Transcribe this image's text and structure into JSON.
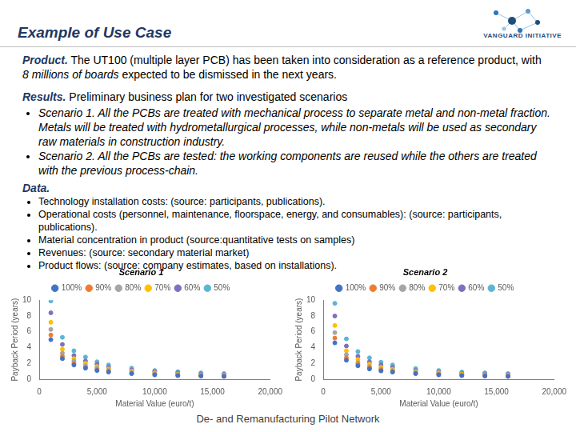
{
  "header": {
    "title": "Example of Use Case",
    "logo": "VANGUARD INITIATIVE"
  },
  "product": {
    "label": "Product.",
    "text_before": " The UT100 (multiple layer PCB) has been taken into consideration as a reference product, with ",
    "emphasis": "8 millions of boards",
    "text_after": " expected to be dismissed in the next years."
  },
  "results": {
    "label": "Results.",
    "text": " Preliminary business plan for two investigated scenarios",
    "items": [
      "Scenario 1. All the PCBs are treated with mechanical process to separate metal and non-metal fraction. Metals will be treated with hydrometallurgical processes, while non-metals will be used as secondary raw materials in construction industry.",
      "Scenario 2. All the PCBs are tested: the working components are reused while the others are treated with the previous process-chain."
    ]
  },
  "data": {
    "label": "Data.",
    "items": [
      "Technology installation costs: (source: participants, publications).",
      "Operational costs (personnel, maintenance, floorspace, energy, and consumables): (source: participants, publications).",
      "Material concentration in product (source:quantitative tests on samples)",
      "Revenues: (source: secondary material market)",
      "Product flows: (source: company estimates, based on installations)."
    ]
  },
  "chart_data": [
    {
      "type": "scatter",
      "title": "Scenario 1",
      "x_label": "Material Value (euro/t)",
      "y_label": "Payback Period (years)",
      "xlim": [
        0,
        20000
      ],
      "xticks": [
        0,
        5000,
        10000,
        15000,
        20000
      ],
      "ylim": [
        0,
        10
      ],
      "yticks": [
        0,
        2,
        4,
        6,
        8,
        10
      ],
      "grid": false,
      "legend": "top",
      "marker": "circle",
      "x": [
        1000,
        2000,
        3000,
        4000,
        5000,
        6000,
        8000,
        10000,
        12000,
        14000,
        16000
      ],
      "series": [
        {
          "name": "100%",
          "color": "#4472c4",
          "values": [
            5.0,
            2.6,
            1.8,
            1.4,
            1.1,
            0.9,
            0.7,
            0.55,
            0.45,
            0.4,
            0.35
          ]
        },
        {
          "name": "90%",
          "color": "#ed7d31",
          "values": [
            5.6,
            2.9,
            2.0,
            1.5,
            1.2,
            1.0,
            0.75,
            0.6,
            0.5,
            0.45,
            0.4
          ]
        },
        {
          "name": "80%",
          "color": "#a5a5a5",
          "values": [
            6.3,
            3.3,
            2.3,
            1.7,
            1.4,
            1.15,
            0.85,
            0.7,
            0.6,
            0.5,
            0.45
          ]
        },
        {
          "name": "70%",
          "color": "#ffc000",
          "values": [
            7.2,
            3.8,
            2.6,
            2.0,
            1.6,
            1.3,
            1.0,
            0.8,
            0.65,
            0.55,
            0.5
          ]
        },
        {
          "name": "60%",
          "color": "#7f6fbf",
          "values": [
            8.4,
            4.4,
            3.0,
            2.3,
            1.9,
            1.5,
            1.15,
            0.95,
            0.8,
            0.65,
            0.6
          ]
        },
        {
          "name": "50%",
          "color": "#5bb5d5",
          "values": [
            9.9,
            5.3,
            3.6,
            2.8,
            2.2,
            1.8,
            1.4,
            1.1,
            0.95,
            0.8,
            0.7
          ]
        }
      ]
    },
    {
      "type": "scatter",
      "title": "Scenario 2",
      "x_label": "Material Value (euro/t)",
      "y_label": "Payback Period (years)",
      "xlim": [
        0,
        20000
      ],
      "xticks": [
        0,
        5000,
        10000,
        15000,
        20000
      ],
      "ylim": [
        0,
        10
      ],
      "yticks": [
        0,
        2,
        4,
        6,
        8,
        10
      ],
      "grid": false,
      "legend": "top",
      "marker": "circle",
      "x": [
        1000,
        2000,
        3000,
        4000,
        5000,
        6000,
        8000,
        10000,
        12000,
        14000,
        16000
      ],
      "series": [
        {
          "name": "100%",
          "color": "#4472c4",
          "values": [
            4.6,
            2.4,
            1.7,
            1.3,
            1.05,
            0.9,
            0.7,
            0.55,
            0.45,
            0.4,
            0.35
          ]
        },
        {
          "name": "90%",
          "color": "#ed7d31",
          "values": [
            5.2,
            2.7,
            1.9,
            1.45,
            1.15,
            0.95,
            0.75,
            0.6,
            0.5,
            0.45,
            0.4
          ]
        },
        {
          "name": "80%",
          "color": "#a5a5a5",
          "values": [
            5.9,
            3.1,
            2.1,
            1.6,
            1.3,
            1.1,
            0.85,
            0.7,
            0.55,
            0.5,
            0.45
          ]
        },
        {
          "name": "70%",
          "color": "#ffc000",
          "values": [
            6.8,
            3.6,
            2.5,
            1.9,
            1.5,
            1.25,
            0.95,
            0.8,
            0.65,
            0.55,
            0.5
          ]
        },
        {
          "name": "60%",
          "color": "#7f6fbf",
          "values": [
            8.0,
            4.2,
            2.9,
            2.2,
            1.8,
            1.5,
            1.1,
            0.9,
            0.75,
            0.65,
            0.6
          ]
        },
        {
          "name": "50%",
          "color": "#5bb5d5",
          "values": [
            9.6,
            5.1,
            3.5,
            2.7,
            2.15,
            1.8,
            1.35,
            1.1,
            0.9,
            0.8,
            0.7
          ]
        }
      ]
    }
  ],
  "footer": "De- and Remanufacturing Pilot Network"
}
